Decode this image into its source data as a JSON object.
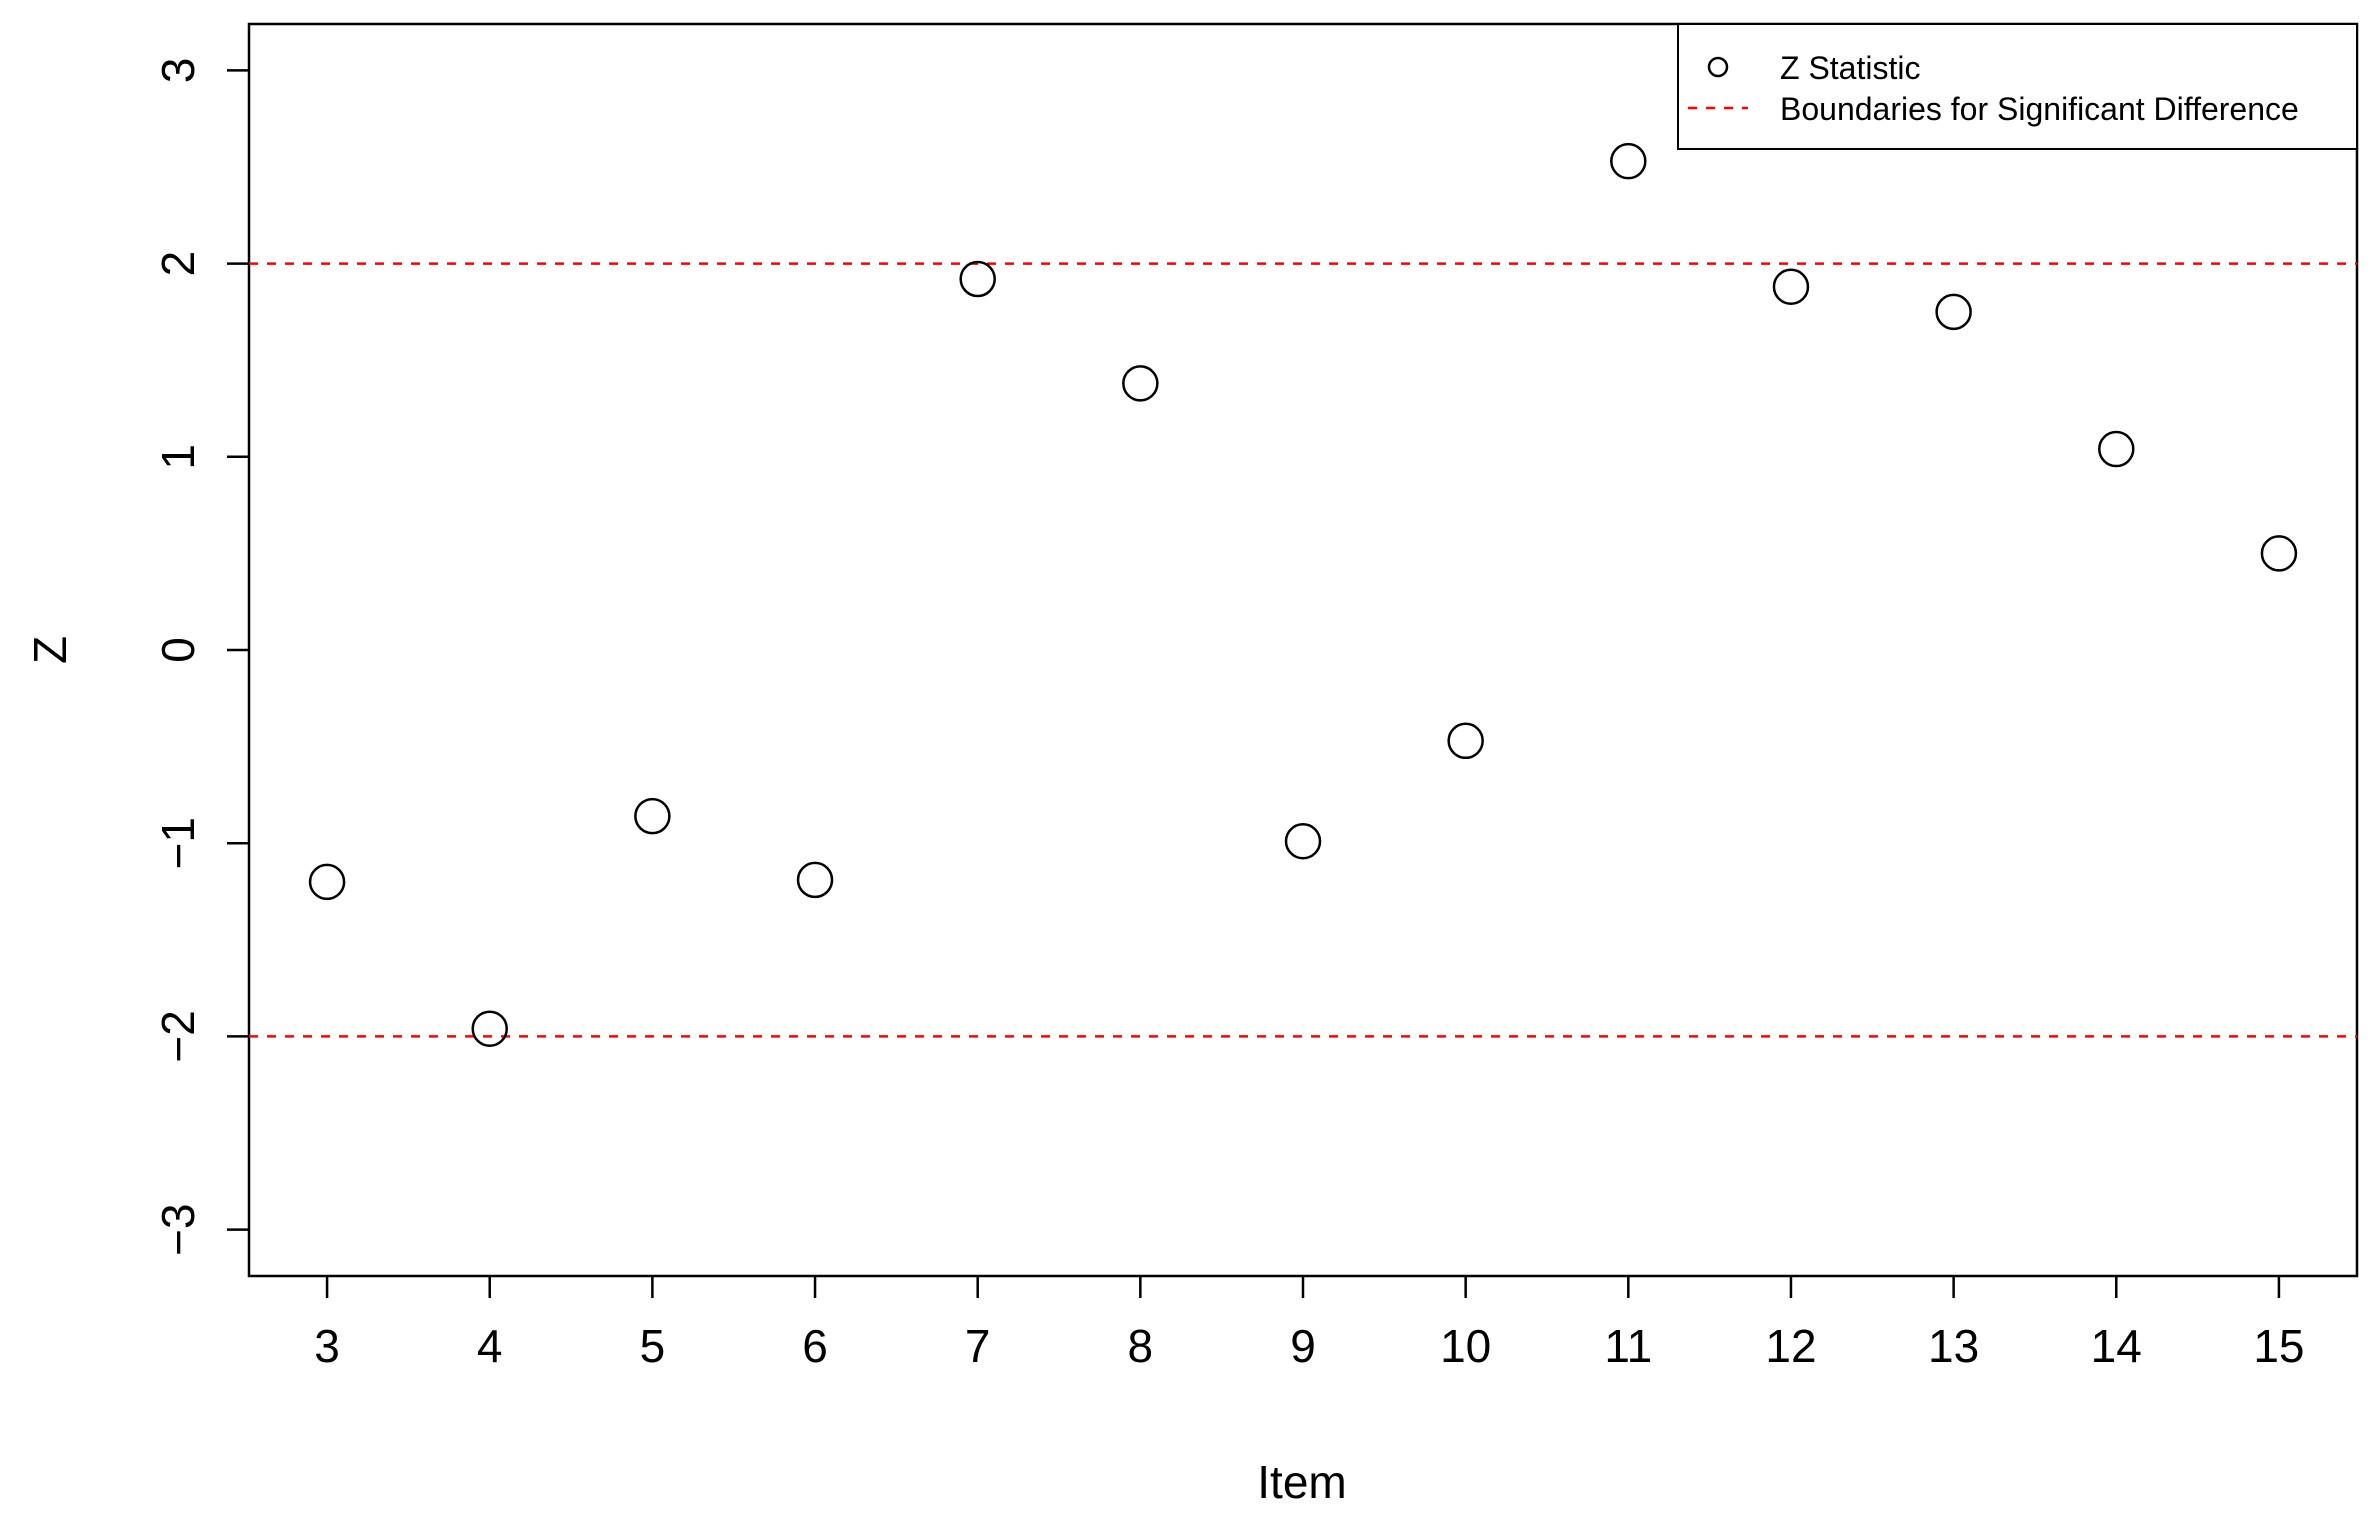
{
  "chart_data": {
    "type": "scatter",
    "title": "",
    "xlabel": "Item",
    "ylabel": "Z",
    "x_ticks": [
      3,
      4,
      5,
      6,
      7,
      8,
      9,
      10,
      11,
      12,
      13,
      14,
      15
    ],
    "y_ticks": [
      -3,
      -2,
      -1,
      0,
      1,
      2,
      3
    ],
    "y_tick_labels": [
      "−3",
      "−2",
      "−1",
      "0",
      "1",
      "2",
      "3"
    ],
    "xlim": [
      2.52,
      15.48
    ],
    "ylim": [
      -3.24,
      3.24
    ],
    "grid": false,
    "legend_position": "top-right",
    "series": [
      {
        "name": "Z Statistic",
        "marker": "open-circle",
        "color": "#000000",
        "x": [
          3,
          4,
          5,
          6,
          7,
          8,
          9,
          10,
          11,
          12,
          13,
          14,
          15
        ],
        "y": [
          -1.2,
          -1.96,
          -0.86,
          -1.19,
          1.92,
          1.38,
          -0.99,
          -0.47,
          2.53,
          1.88,
          1.75,
          1.04,
          0.5
        ]
      }
    ],
    "reference_lines": {
      "name": "Boundaries for Significant Difference",
      "style": "dashed",
      "color": "#ff0000",
      "y": [
        2,
        -2
      ]
    }
  }
}
